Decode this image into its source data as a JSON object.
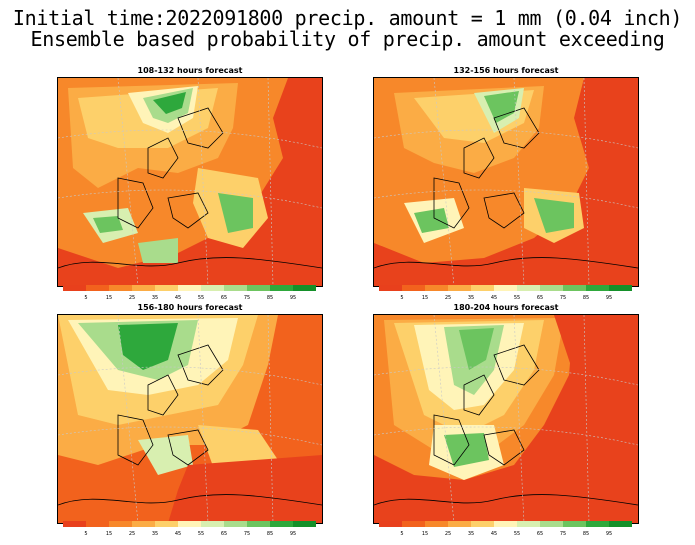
{
  "title": {
    "line1": "Initial time:2022091800 precip. amount = 1 mm (0.04 inch)",
    "line2": "Ensemble based probability of precip. amount exceeding"
  },
  "panels": [
    {
      "title": "108-132 hours forecast"
    },
    {
      "title": "132-156 hours forecast"
    },
    {
      "title": "156-180 hours forecast"
    },
    {
      "title": "180-204 hours forecast"
    }
  ],
  "colorbar": {
    "labels": [
      "5",
      "15",
      "25",
      "35",
      "45",
      "55",
      "65",
      "75",
      "85",
      "95"
    ],
    "colors": [
      "#e8401c",
      "#f2621d",
      "#f7882a",
      "#fbac45",
      "#fdd06a",
      "#fff4b8",
      "#d8efb0",
      "#a9dc8c",
      "#6cc45f",
      "#2ea83c",
      "#14902a"
    ]
  }
}
